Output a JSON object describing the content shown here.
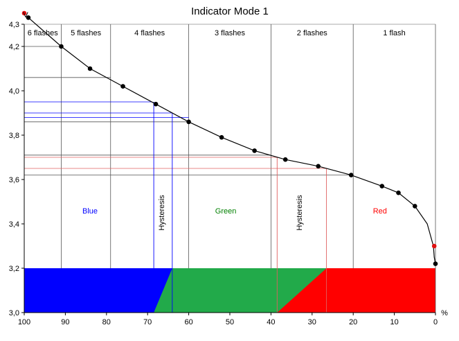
{
  "chart_data": {
    "type": "line",
    "title": "Indicator Mode 1",
    "xlabel": "%",
    "ylabel": "V",
    "xlim": [
      100,
      0
    ],
    "ylim": [
      3.0,
      4.3
    ],
    "x_ticks": [
      100,
      90,
      80,
      70,
      60,
      50,
      40,
      30,
      20,
      10,
      0
    ],
    "y_ticks": [
      3.0,
      3.2,
      3.4,
      3.6,
      3.8,
      4.0,
      4.2,
      4.3
    ],
    "y_tick_labels": [
      "3,0",
      "3,2",
      "3,4",
      "3,6",
      "3,8",
      "4,0",
      "4,2",
      "4,3"
    ],
    "curve": {
      "x": [
        99,
        91,
        84,
        76,
        68,
        60,
        52,
        44,
        36.5,
        28.5,
        20.5,
        13,
        9,
        5,
        2,
        0.5,
        0.3,
        0
      ],
      "y": [
        4.33,
        4.2,
        4.1,
        4.02,
        3.94,
        3.86,
        3.79,
        3.73,
        3.69,
        3.66,
        3.62,
        3.57,
        3.54,
        3.48,
        3.4,
        3.3,
        3.25,
        3.22
      ]
    },
    "markers": {
      "x": [
        99,
        91,
        84,
        76,
        68,
        60,
        52,
        44,
        36.5,
        28.5,
        20.5,
        13,
        9,
        5,
        0
      ],
      "y": [
        4.33,
        4.2,
        4.1,
        4.02,
        3.94,
        3.86,
        3.79,
        3.73,
        3.69,
        3.66,
        3.62,
        3.57,
        3.54,
        3.48,
        3.22
      ]
    },
    "red_markers": [
      {
        "x": 100,
        "y": 4.35
      },
      {
        "x": 0.3,
        "y": 3.3
      }
    ],
    "flash_bands": [
      {
        "label": "6 flashes",
        "x_from": 100,
        "x_to": 91
      },
      {
        "label": "5 flashes",
        "x_from": 91,
        "x_to": 79
      },
      {
        "label": "4 flashes",
        "x_from": 79,
        "x_to": 60
      },
      {
        "label": "3 flashes",
        "x_from": 60,
        "x_to": 40
      },
      {
        "label": "2 flashes",
        "x_from": 40,
        "x_to": 20
      },
      {
        "label": "1 flash",
        "x_from": 20,
        "x_to": 0
      }
    ],
    "threshold_lines": [
      {
        "y": 4.2,
        "x_end": 91,
        "color": "#555555"
      },
      {
        "y": 4.06,
        "x_end": 79,
        "color": "#555555"
      },
      {
        "y": 3.95,
        "x_end": 69,
        "color": "#0000ff"
      },
      {
        "y": 3.9,
        "x_end": 64,
        "color": "#0000ff"
      },
      {
        "y": 3.88,
        "x_end": 60,
        "color": "#0000ff"
      },
      {
        "y": 3.86,
        "x_end": 60,
        "color": "#555555"
      },
      {
        "y": 3.71,
        "x_end": 40,
        "color": "#555555"
      },
      {
        "y": 3.7,
        "x_end": 38.5,
        "color": "#e06060"
      },
      {
        "y": 3.65,
        "x_end": 26.5,
        "color": "#e06060"
      },
      {
        "y": 3.62,
        "x_end": 20,
        "color": "#555555"
      }
    ],
    "hysteresis_lines": [
      {
        "x": 68.5,
        "y_top": 3.95,
        "color": "#0000ff"
      },
      {
        "x": 64,
        "y_top": 3.9,
        "color": "#0000ff"
      },
      {
        "x": 38.5,
        "y_top": 3.7,
        "color": "#e06060"
      },
      {
        "x": 26.5,
        "y_top": 3.65,
        "color": "#e06060"
      }
    ],
    "zones": [
      {
        "label": "Blue",
        "color": "#0000ff",
        "label_x": 84,
        "label_y": 3.46
      },
      {
        "label": "Green",
        "color": "#008000",
        "label_x": 51,
        "label_y": 3.46
      },
      {
        "label": "Red",
        "color": "#ff0000",
        "label_x": 13.5,
        "label_y": 3.46
      }
    ],
    "hysteresis_labels": [
      {
        "text": "Hysteresis",
        "x": 66,
        "y": 3.45
      },
      {
        "text": "Hysteresis",
        "x": 32.5,
        "y": 3.45
      }
    ],
    "bar_fill": {
      "y_from": 3.0,
      "y_to": 3.2,
      "blue": "#0000ff",
      "green": "#22aa4a",
      "red": "#ff0000",
      "blue_green_x": {
        "bottom": 68.5,
        "top": 64
      },
      "green_red_x": {
        "bottom": 38.5,
        "top": 26.5
      }
    }
  }
}
